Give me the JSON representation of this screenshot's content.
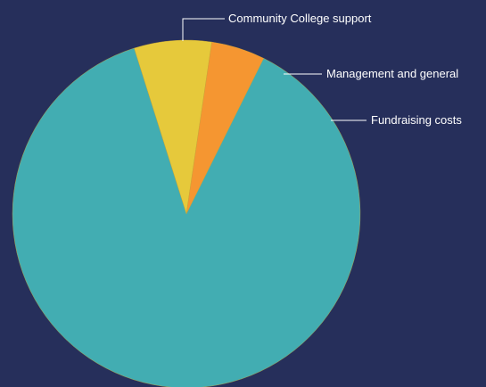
{
  "colors": {
    "background": "#262f5b",
    "leader_line": "#ffffff",
    "label_text": "#ffffff"
  },
  "chart_data": {
    "type": "pie",
    "title": "",
    "legend": "none",
    "start_angle_deg": -17.5,
    "direction": "clockwise",
    "slices": [
      {
        "label": "Management and general",
        "value": 7.2,
        "color": "#e6c93b"
      },
      {
        "label": "Fundraising costs",
        "value": 5.0,
        "color": "#f59631"
      },
      {
        "label": "Community College support",
        "value": 87.8,
        "color": "#42adb2"
      }
    ]
  }
}
